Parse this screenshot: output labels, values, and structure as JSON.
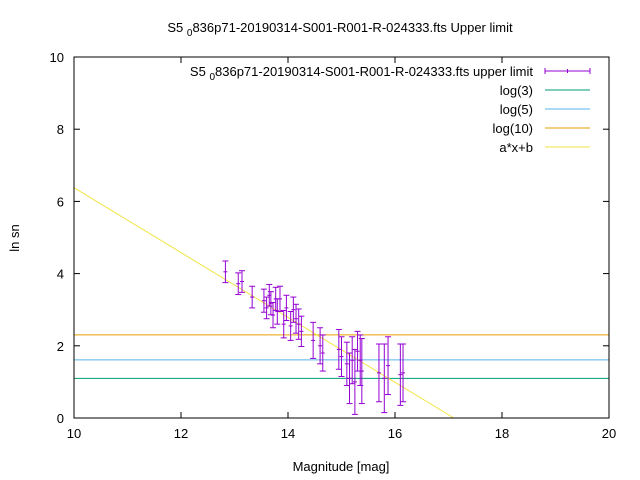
{
  "chart_data": {
    "type": "scatter",
    "title": "S5 0836p71-20190314-S001-R001-R-024333.fts Upper limit",
    "title_parts": {
      "pre": "S5",
      "sub": "0",
      "post": "836p71-20190314-S001-R001-R-024333.fts Upper limit"
    },
    "xlabel": "Magnitude [mag]",
    "ylabel": "ln sn",
    "xlim": [
      10,
      20
    ],
    "ylim": [
      0,
      10
    ],
    "xticks": [
      10,
      12,
      14,
      16,
      18,
      20
    ],
    "yticks": [
      0,
      2,
      4,
      6,
      8,
      10
    ],
    "grid": false,
    "legend_position": "top-right",
    "legend": [
      {
        "pre": "S5",
        "sub": "0",
        "post": "836p71-20190314-S001-R001-R-024333.fts upper limit",
        "color": "#9400d3",
        "kind": "errorbar"
      },
      {
        "label": "log(3)",
        "color": "#009e73",
        "kind": "line"
      },
      {
        "label": "log(5)",
        "color": "#56b4e9",
        "kind": "line"
      },
      {
        "label": "log(10)",
        "color": "#e69f00",
        "kind": "line"
      },
      {
        "label": "a*x+b",
        "color": "#f0e442",
        "kind": "line"
      }
    ],
    "hlines": [
      1.0986,
      1.6094,
      2.3026
    ],
    "fit": {
      "x": [
        10,
        17.1
      ],
      "y": [
        6.38,
        0
      ]
    },
    "points": [
      {
        "x": 12.83,
        "y": 4.05,
        "err": 0.3
      },
      {
        "x": 13.07,
        "y": 3.72,
        "err": 0.3
      },
      {
        "x": 13.14,
        "y": 3.78,
        "err": 0.3
      },
      {
        "x": 13.33,
        "y": 3.35,
        "err": 0.3
      },
      {
        "x": 13.55,
        "y": 3.25,
        "err": 0.32
      },
      {
        "x": 13.6,
        "y": 3.05,
        "err": 0.3
      },
      {
        "x": 13.65,
        "y": 3.4,
        "err": 0.3
      },
      {
        "x": 13.68,
        "y": 3.18,
        "err": 0.32
      },
      {
        "x": 13.72,
        "y": 2.85,
        "err": 0.35
      },
      {
        "x": 13.77,
        "y": 3.3,
        "err": 0.32
      },
      {
        "x": 13.8,
        "y": 2.95,
        "err": 0.35
      },
      {
        "x": 13.85,
        "y": 3.3,
        "err": 0.35
      },
      {
        "x": 13.92,
        "y": 2.6,
        "err": 0.38
      },
      {
        "x": 13.97,
        "y": 3.05,
        "err": 0.35
      },
      {
        "x": 14.05,
        "y": 2.55,
        "err": 0.4
      },
      {
        "x": 14.1,
        "y": 3.0,
        "err": 0.35
      },
      {
        "x": 14.15,
        "y": 2.75,
        "err": 0.4
      },
      {
        "x": 14.2,
        "y": 2.6,
        "err": 0.42
      },
      {
        "x": 14.25,
        "y": 2.4,
        "err": 0.42
      },
      {
        "x": 14.47,
        "y": 2.15,
        "err": 0.5
      },
      {
        "x": 14.6,
        "y": 2.0,
        "err": 0.5
      },
      {
        "x": 14.65,
        "y": 1.8,
        "err": 0.5
      },
      {
        "x": 14.95,
        "y": 1.9,
        "err": 0.55
      },
      {
        "x": 15.0,
        "y": 1.7,
        "err": 0.55
      },
      {
        "x": 15.1,
        "y": 1.5,
        "err": 0.6
      },
      {
        "x": 15.15,
        "y": 1.1,
        "err": 0.7
      },
      {
        "x": 15.2,
        "y": 1.6,
        "err": 0.65
      },
      {
        "x": 15.25,
        "y": 1.0,
        "err": 0.9
      },
      {
        "x": 15.3,
        "y": 1.85,
        "err": 0.55
      },
      {
        "x": 15.35,
        "y": 1.6,
        "err": 0.7
      },
      {
        "x": 15.38,
        "y": 1.3,
        "err": 0.9
      },
      {
        "x": 15.7,
        "y": 1.25,
        "err": 0.8
      },
      {
        "x": 15.8,
        "y": 1.1,
        "err": 0.95
      },
      {
        "x": 15.87,
        "y": 1.45,
        "err": 0.8
      },
      {
        "x": 16.1,
        "y": 1.2,
        "err": 0.85
      },
      {
        "x": 16.15,
        "y": 1.25,
        "err": 0.8
      }
    ]
  }
}
